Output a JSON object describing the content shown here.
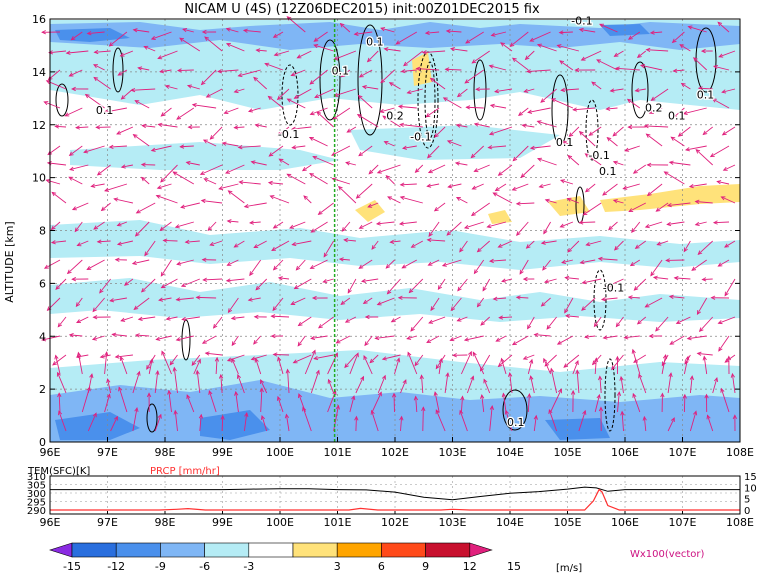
{
  "title": "NICAM U (4S) (12Z06DEC2015) init:00Z01DEC2015 fix",
  "chart_data": [
    {
      "type": "heatmap",
      "panel": "main",
      "ylabel": "ALTITUDE [km]",
      "xlim": [
        96,
        108
      ],
      "ylim": [
        0,
        16
      ],
      "x_ticks": [
        "96E",
        "97E",
        "98E",
        "99E",
        "100E",
        "101E",
        "102E",
        "103E",
        "104E",
        "105E",
        "106E",
        "107E",
        "108E"
      ],
      "y_ticks": [
        "0",
        "2",
        "4",
        "6",
        "8",
        "10",
        "12",
        "14",
        "16"
      ],
      "marker_line_lon": 100.95,
      "contour_labels": [
        {
          "text": "0.1",
          "lon": 96.95,
          "alt": 12.4
        },
        {
          "text": "-0.1",
          "lon": 100.15,
          "alt": 11.5
        },
        {
          "text": "0.1",
          "lon": 101.05,
          "alt": 13.9
        },
        {
          "text": "0.1",
          "lon": 101.65,
          "alt": 15.0
        },
        {
          "text": "0.2",
          "lon": 102.0,
          "alt": 12.2
        },
        {
          "text": "-0.1",
          "lon": 102.45,
          "alt": 11.4
        },
        {
          "text": "-0.1",
          "lon": 105.25,
          "alt": 15.8
        },
        {
          "text": "0.1",
          "lon": 104.95,
          "alt": 11.2
        },
        {
          "text": "-0.1",
          "lon": 105.55,
          "alt": 10.7
        },
        {
          "text": "0.1",
          "lon": 105.7,
          "alt": 10.1
        },
        {
          "text": "0.2",
          "lon": 106.5,
          "alt": 12.5
        },
        {
          "text": "0.1",
          "lon": 106.9,
          "alt": 12.2
        },
        {
          "text": "0.1",
          "lon": 107.4,
          "alt": 13.0
        },
        {
          "text": "-0.1",
          "lon": 105.8,
          "alt": 5.7
        },
        {
          "text": "0.1",
          "lon": 104.1,
          "alt": 0.6
        }
      ]
    },
    {
      "type": "line",
      "panel": "bottom",
      "left_label": "TEM(SFC)[K]",
      "right_label": "PRCP [mm/hr]",
      "xlim": [
        96,
        108
      ],
      "left_ticks": [
        "310",
        "305",
        "300",
        "295",
        "290"
      ],
      "right_ticks": [
        "15",
        "10",
        "5",
        "0"
      ],
      "x_ticks": [
        "96E",
        "97E",
        "98E",
        "99E",
        "100E",
        "101E",
        "102E",
        "103E",
        "104E",
        "105E",
        "106E",
        "107E",
        "108E"
      ],
      "series": [
        {
          "name": "TEM(SFC)[K]",
          "color": "#000000",
          "axis": "left",
          "x": [
            96,
            96.5,
            97,
            97.5,
            98,
            98.5,
            99,
            99.5,
            100,
            100.5,
            101,
            101.5,
            102,
            102.5,
            103,
            103.5,
            104,
            104.5,
            105,
            105.3,
            105.5,
            105.7,
            106,
            106.5,
            107,
            107.5,
            108
          ],
          "y": [
            302,
            302,
            302,
            302,
            302,
            302,
            302,
            302.3,
            302.5,
            302.5,
            302,
            301.8,
            300.5,
            297.5,
            296,
            298,
            299.8,
            300.8,
            302.3,
            303.5,
            303,
            301,
            302,
            302,
            302,
            302,
            302
          ]
        },
        {
          "name": "PRCP [mm/hr]",
          "color": "#ff3030",
          "axis": "right",
          "x": [
            96,
            97.9,
            98.2,
            98.4,
            98.7,
            100.9,
            101.2,
            101.4,
            101.7,
            102.5,
            102.8,
            103,
            103.3,
            105.3,
            105.45,
            105.55,
            105.6,
            105.7,
            105.9,
            108
          ],
          "y": [
            0,
            0,
            0.3,
            0.6,
            0,
            0,
            0,
            0.7,
            0,
            0,
            0,
            0.3,
            0,
            0,
            4,
            9,
            8,
            2,
            0,
            0
          ]
        }
      ]
    }
  ],
  "colorbar": {
    "ticks": [
      "-15",
      "-12",
      "-9",
      "-6",
      "-3",
      "3",
      "6",
      "9",
      "12",
      "15"
    ],
    "unit": "[m/s]",
    "colors": [
      "#8a2be2",
      "#2a6fde",
      "#4a90ec",
      "#7fb6f5",
      "#b5ecf5",
      "#ffffff",
      "#ffe27a",
      "#ffa500",
      "#ff4a1a",
      "#c8102e",
      "#e0207d"
    ],
    "vector_label": "Wx100(vector)"
  }
}
